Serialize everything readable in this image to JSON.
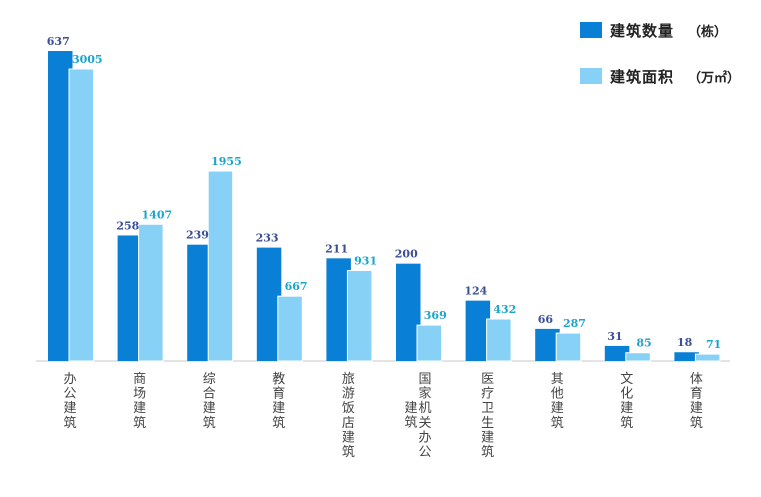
{
  "chart_data": {
    "type": "bar",
    "categories": [
      "办公建筑",
      "商场建筑",
      "综合建筑",
      "教育建筑",
      "旅游饭店建筑",
      "国家机关办公建筑",
      "医疗卫生建筑",
      "其他建筑",
      "文化建筑",
      "体育建筑"
    ],
    "series": [
      {
        "name": "建筑数量",
        "unit": "（栋）",
        "values": [
          637,
          258,
          239,
          233,
          211,
          200,
          124,
          66,
          31,
          18
        ],
        "color": "#0a7fd6"
      },
      {
        "name": "建筑面积",
        "unit": "（万㎡）",
        "values": [
          3005,
          1407,
          1955,
          667,
          931,
          369,
          432,
          287,
          85,
          71
        ],
        "color": "#87d1f7"
      }
    ],
    "category_label_columns": [
      [
        "办公建筑"
      ],
      [
        "商场建筑"
      ],
      [
        "综合建筑"
      ],
      [
        "教育建筑"
      ],
      [
        "旅游饭店建筑"
      ],
      [
        "国家机关办公",
        "建筑"
      ],
      [
        "医疗卫生建筑"
      ],
      [
        "其他建筑"
      ],
      [
        "文化建筑"
      ],
      [
        "体育建筑"
      ]
    ],
    "legend_position": "top-right",
    "grid": false,
    "title": "",
    "xlabel": "",
    "ylabel": ""
  },
  "legend": {
    "count_label": "建筑数量",
    "count_unit": "（栋）",
    "area_label": "建筑面积",
    "area_unit": "（万㎡）",
    "count_color": "#0a7fd6",
    "area_color": "#87d1f7"
  }
}
